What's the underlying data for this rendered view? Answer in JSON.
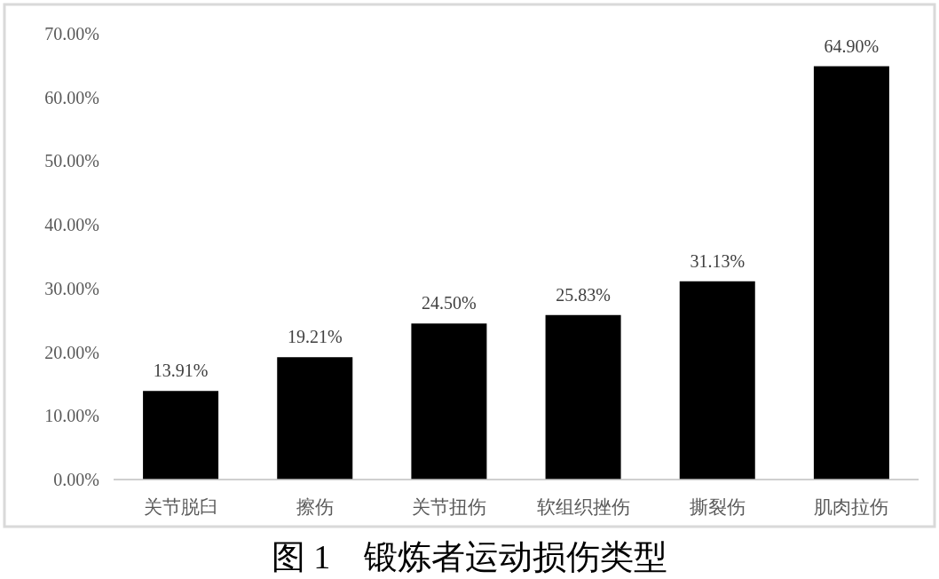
{
  "chart_data": {
    "type": "bar",
    "title": "图 1　锻炼者运动损伤类型",
    "categories": [
      "关节脱臼",
      "擦伤",
      "关节扭伤",
      "软组织挫伤",
      "撕裂伤",
      "肌肉拉伤"
    ],
    "values": [
      13.91,
      19.21,
      24.5,
      25.83,
      31.13,
      64.9
    ],
    "value_labels": [
      "13.91%",
      "19.21%",
      "24.50%",
      "25.83%",
      "31.13%",
      "64.90%"
    ],
    "color": "#000000",
    "ylim": [
      0,
      70
    ],
    "yticks": [
      {
        "value": 0,
        "label": "0.00%"
      },
      {
        "value": 10,
        "label": "10.00%"
      },
      {
        "value": 20,
        "label": "20.00%"
      },
      {
        "value": 30,
        "label": "30.00%"
      },
      {
        "value": 40,
        "label": "40.00%"
      },
      {
        "value": 50,
        "label": "50.00%"
      },
      {
        "value": 60,
        "label": "60.00%"
      },
      {
        "value": 70,
        "label": "70.00%"
      }
    ]
  }
}
